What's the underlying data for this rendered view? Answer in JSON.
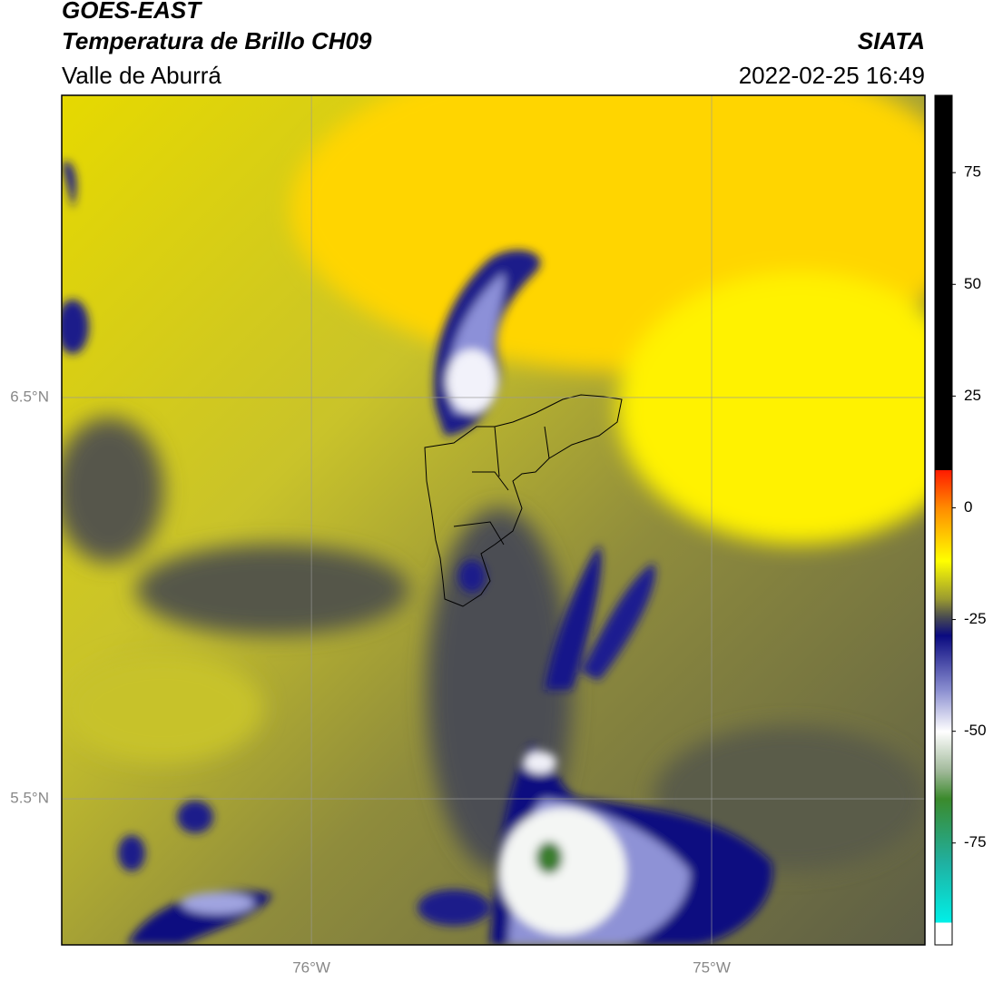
{
  "header": {
    "title": "GOES-EAST",
    "subtitle": "Temperatura de Brillo CH09",
    "region": "Valle de Aburrá",
    "source": "SIATA",
    "datetime": "2022-02-25 16:49"
  },
  "map": {
    "xlim": [
      -76.624,
      -74.467
    ],
    "ylim": [
      5.136,
      7.253
    ],
    "xticks": [
      {
        "value": -76,
        "label": "76°W"
      },
      {
        "value": -75,
        "label": "75°W"
      }
    ],
    "yticks": [
      {
        "value": 5.5,
        "label": "5.5°N"
      },
      {
        "value": 6.5,
        "label": "6.5°N"
      }
    ]
  },
  "colorbar": {
    "lim": [
      -97.8,
      92.3
    ],
    "ticks": [
      -75,
      -50,
      -25,
      0,
      25,
      50,
      75
    ]
  }
}
